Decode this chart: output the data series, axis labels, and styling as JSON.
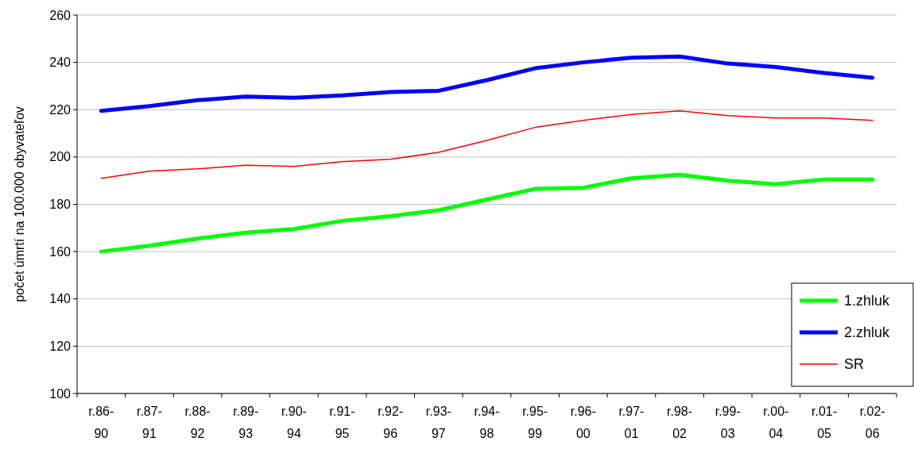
{
  "chart_data": {
    "type": "line",
    "ylabel": "počet úmrtí na 100.000 obyvateľov",
    "categories": [
      "r.86-90",
      "r.87-91",
      "r.88-92",
      "r.89-93",
      "r.90-94",
      "r.91-95",
      "r.92-96",
      "r.93-97",
      "r.94-98",
      "r.95-99",
      "r.96-00",
      "r.97-01",
      "r.98-02",
      "r.99-03",
      "r.00-04",
      "r.01-05",
      "r.02-06"
    ],
    "series": [
      {
        "name": "1.zhluk",
        "color": "#00ff00",
        "values": [
          160,
          162.5,
          165.5,
          168,
          169.5,
          173,
          175,
          177.5,
          182,
          186.5,
          187,
          191,
          192.5,
          190,
          188.5,
          190.5,
          190.5
        ]
      },
      {
        "name": "2.zhluk",
        "color": "#0000ff",
        "values": [
          219.5,
          221.5,
          224,
          225.5,
          225,
          226,
          227.5,
          228,
          232.5,
          237.5,
          240,
          242,
          242.5,
          239.5,
          238,
          235.5,
          233.5
        ]
      },
      {
        "name": "SR",
        "color": "#ff0000",
        "values": [
          191,
          194,
          195,
          196.5,
          196,
          198,
          199,
          202,
          207,
          212.5,
          215.5,
          218,
          219.5,
          217.5,
          216.5,
          216.5,
          215.5
        ]
      }
    ],
    "ylim": [
      100,
      260
    ],
    "yticks": [
      100,
      120,
      140,
      160,
      180,
      200,
      220,
      240,
      260
    ],
    "grid": "y",
    "legend": "bottom right",
    "marker": "none",
    "line_style": "solid"
  }
}
